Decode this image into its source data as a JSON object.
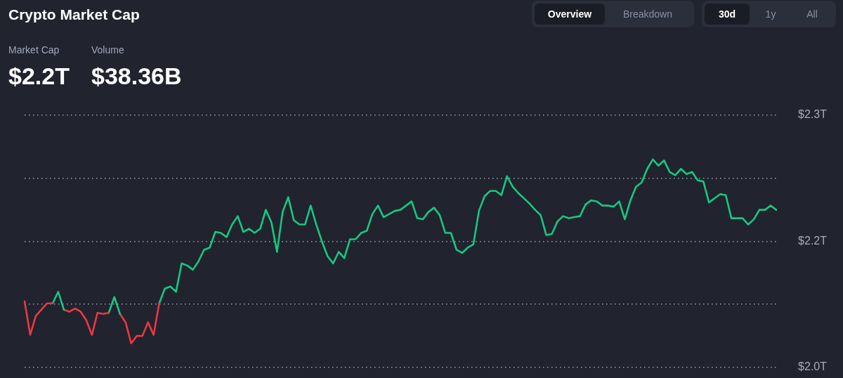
{
  "chart_data": {
    "type": "line",
    "title": "Crypto Market Cap",
    "annotations": [
      "Market Cap",
      "$2.2T",
      "Volume",
      "$38.36B",
      "Overview",
      "Breakdown",
      "30d",
      "1y",
      "All"
    ],
    "categories": [
      null,
      null,
      null,
      null,
      null,
      null,
      null,
      null,
      null,
      null,
      null,
      null,
      null,
      null,
      null,
      null,
      null,
      null,
      null,
      null,
      null,
      null,
      null,
      null,
      null,
      null,
      null,
      null,
      null,
      null,
      null,
      null,
      null,
      null,
      null,
      null,
      null,
      null,
      null,
      null,
      null,
      null,
      null,
      null,
      null,
      null,
      null,
      null,
      null,
      null,
      null,
      null,
      null,
      null,
      null,
      null,
      null,
      null,
      null,
      null,
      null,
      null,
      null,
      null,
      null,
      null,
      null,
      null,
      null,
      null,
      null,
      null,
      null,
      null,
      null,
      null,
      null,
      null,
      null,
      null,
      null,
      null,
      null,
      null,
      null,
      null,
      null,
      null,
      null,
      null,
      null,
      null,
      null,
      null,
      null,
      null,
      null,
      null,
      null,
      null,
      null,
      null,
      null,
      null,
      null,
      null,
      null,
      null,
      null,
      null,
      null,
      null,
      null,
      null,
      null,
      null,
      null,
      null,
      null,
      null,
      null,
      null,
      null,
      null,
      null,
      null,
      null,
      null,
      null,
      null,
      null,
      null,
      null,
      null,
      null
    ],
    "series": [
      {
        "color": "#ea3943",
        "values": [
          2.103,
          2.071,
          2.089,
          2.095,
          2.101,
          2.101,
          null,
          null,
          null,
          null,
          null,
          null,
          null,
          null,
          null,
          null,
          null,
          null,
          null,
          null,
          null,
          null,
          null,
          null,
          null,
          null,
          null,
          null,
          null,
          null,
          null,
          null,
          null,
          null,
          null,
          null,
          null,
          null,
          null,
          null,
          null,
          null,
          null,
          null,
          null,
          null,
          null,
          null,
          null,
          null,
          null,
          null,
          null,
          null,
          null,
          null,
          null,
          null,
          null,
          null,
          null,
          null,
          null,
          null,
          null,
          null,
          null,
          null,
          null,
          null,
          null,
          null,
          null,
          null,
          null,
          null,
          null,
          null,
          null,
          null,
          null,
          null,
          null,
          null,
          null,
          null,
          null,
          null,
          null,
          null,
          null,
          null,
          null,
          null,
          null,
          null,
          null,
          null,
          null,
          null,
          null,
          null,
          null,
          null,
          null,
          null,
          null,
          null,
          null,
          null,
          null,
          null,
          null,
          null,
          null,
          null,
          null,
          null,
          null,
          null,
          null,
          null,
          null,
          null,
          null,
          null,
          null,
          null,
          null,
          null,
          null,
          null,
          null,
          null,
          null
        ]
      },
      {
        "color": "#16c784",
        "values": [
          null,
          null,
          null,
          null,
          null,
          2.101,
          2.112,
          2.095,
          null,
          null,
          null,
          null,
          null,
          null,
          null,
          null,
          null,
          null,
          null,
          null,
          null,
          null,
          null,
          null,
          null,
          null,
          null,
          null,
          null,
          null,
          null,
          null,
          null,
          null,
          null,
          null,
          null,
          null,
          null,
          null,
          null,
          null,
          null,
          null,
          null,
          null,
          null,
          null,
          null,
          null,
          null,
          null,
          null,
          null,
          null,
          null,
          null,
          null,
          null,
          null,
          null,
          null,
          null,
          null,
          null,
          null,
          null,
          null,
          null,
          null,
          null,
          null,
          null,
          null,
          null,
          null,
          null,
          null,
          null,
          null,
          null,
          null,
          null,
          null,
          null,
          null,
          null,
          null,
          null,
          null,
          null,
          null,
          null,
          null,
          null,
          null,
          null,
          null,
          null,
          null,
          null,
          null,
          null,
          null,
          null,
          null,
          null,
          null,
          null,
          null,
          null,
          null,
          null,
          null,
          null,
          null,
          null,
          null,
          null,
          null,
          null,
          null,
          null,
          null,
          null,
          null,
          null,
          null,
          null,
          null,
          null,
          null,
          null,
          null,
          null
        ]
      },
      {
        "color": "#ea3943",
        "values": [
          null,
          null,
          null,
          null,
          null,
          null,
          null,
          2.095,
          2.093,
          2.096,
          2.093,
          2.085,
          2.071,
          2.092,
          2.091,
          2.092,
          null,
          null,
          null,
          null,
          null,
          null,
          null,
          null,
          null,
          null,
          null,
          null,
          null,
          null,
          null,
          null,
          null,
          null,
          null,
          null,
          null,
          null,
          null,
          null,
          null,
          null,
          null,
          null,
          null,
          null,
          null,
          null,
          null,
          null,
          null,
          null,
          null,
          null,
          null,
          null,
          null,
          null,
          null,
          null,
          null,
          null,
          null,
          null,
          null,
          null,
          null,
          null,
          null,
          null,
          null,
          null,
          null,
          null,
          null,
          null,
          null,
          null,
          null,
          null,
          null,
          null,
          null,
          null,
          null,
          null,
          null,
          null,
          null,
          null,
          null,
          null,
          null,
          null,
          null,
          null,
          null,
          null,
          null,
          null,
          null,
          null,
          null,
          null,
          null,
          null,
          null,
          null,
          null,
          null,
          null,
          null,
          null,
          null,
          null,
          null,
          null,
          null,
          null,
          null,
          null,
          null,
          null,
          null,
          null,
          null,
          null,
          null,
          null,
          null,
          null,
          null,
          null,
          null,
          null
        ]
      },
      {
        "color": "#16c784",
        "values": [
          null,
          null,
          null,
          null,
          null,
          null,
          null,
          null,
          null,
          null,
          null,
          null,
          null,
          null,
          null,
          2.092,
          2.107,
          2.091,
          null,
          null,
          null,
          null,
          null,
          null,
          null,
          null,
          null,
          null,
          null,
          null,
          null,
          null,
          null,
          null,
          null,
          null,
          null,
          null,
          null,
          null,
          null,
          null,
          null,
          null,
          null,
          null,
          null,
          null,
          null,
          null,
          null,
          null,
          null,
          null,
          null,
          null,
          null,
          null,
          null,
          null,
          null,
          null,
          null,
          null,
          null,
          null,
          null,
          null,
          null,
          null,
          null,
          null,
          null,
          null,
          null,
          null,
          null,
          null,
          null,
          null,
          null,
          null,
          null,
          null,
          null,
          null,
          null,
          null,
          null,
          null,
          null,
          null,
          null,
          null,
          null,
          null,
          null,
          null,
          null,
          null,
          null,
          null,
          null,
          null,
          null,
          null,
          null,
          null,
          null,
          null,
          null,
          null,
          null,
          null,
          null,
          null,
          null,
          null,
          null,
          null,
          null,
          null,
          null,
          null,
          null,
          null,
          null,
          null,
          null,
          null,
          null,
          null,
          null,
          null,
          null
        ]
      },
      {
        "color": "#ea3943",
        "values": [
          null,
          null,
          null,
          null,
          null,
          null,
          null,
          null,
          null,
          null,
          null,
          null,
          null,
          null,
          null,
          null,
          null,
          2.091,
          2.083,
          2.063,
          2.07,
          2.07,
          2.083,
          2.071,
          2.101,
          null,
          null,
          null,
          null,
          null,
          null,
          null,
          null,
          null,
          null,
          null,
          null,
          null,
          null,
          null,
          null,
          null,
          null,
          null,
          null,
          null,
          null,
          null,
          null,
          null,
          null,
          null,
          null,
          null,
          null,
          null,
          null,
          null,
          null,
          null,
          null,
          null,
          null,
          null,
          null,
          null,
          null,
          null,
          null,
          null,
          null,
          null,
          null,
          null,
          null,
          null,
          null,
          null,
          null,
          null,
          null,
          null,
          null,
          null,
          null,
          null,
          null,
          null,
          null,
          null,
          null,
          null,
          null,
          null,
          null,
          null,
          null,
          null,
          null,
          null,
          null,
          null,
          null,
          null,
          null,
          null,
          null,
          null,
          null,
          null,
          null,
          null,
          null,
          null,
          null,
          null,
          null,
          null,
          null,
          null,
          null,
          null,
          null,
          null,
          null,
          null,
          null,
          null,
          null,
          null,
          null,
          null,
          null,
          null,
          null
        ]
      },
      {
        "color": "#16c784",
        "values": [
          null,
          null,
          null,
          null,
          null,
          null,
          null,
          null,
          null,
          null,
          null,
          null,
          null,
          null,
          null,
          null,
          null,
          null,
          null,
          null,
          null,
          null,
          null,
          null,
          2.101,
          2.115,
          2.117,
          2.112,
          2.139,
          2.137,
          2.133,
          2.141,
          2.152,
          2.154,
          2.169,
          2.168,
          2.164,
          2.176,
          2.184,
          2.169,
          2.172,
          2.168,
          2.172,
          2.19,
          2.178,
          2.15,
          2.188,
          2.202,
          2.18,
          2.176,
          2.176,
          2.194,
          2.176,
          2.16,
          2.146,
          2.139,
          2.15,
          2.144,
          2.162,
          2.162,
          2.168,
          2.17,
          2.186,
          2.194,
          2.183,
          2.186,
          2.189,
          2.19,
          2.194,
          2.198,
          2.182,
          2.181,
          2.188,
          2.192,
          2.185,
          2.168,
          2.168,
          2.152,
          2.149,
          2.154,
          2.157,
          2.189,
          2.203,
          2.208,
          2.208,
          2.204,
          2.222,
          2.212,
          2.206,
          2.201,
          2.196,
          2.19,
          2.185,
          2.166,
          2.167,
          2.179,
          2.184,
          2.182,
          2.183,
          2.184,
          2.195,
          2.199,
          2.198,
          2.194,
          2.194,
          2.193,
          2.198,
          2.181,
          2.199,
          2.212,
          2.216,
          2.229,
          2.238,
          2.232,
          2.237,
          2.226,
          2.223,
          2.229,
          2.224,
          2.226,
          2.218,
          2.217,
          2.197,
          2.201,
          2.205,
          2.204,
          2.182,
          2.182,
          2.182,
          2.176,
          2.181,
          2.19,
          2.19,
          2.194,
          2.19
        ]
      }
    ],
    "ylim": [
      2.04,
      2.28
    ],
    "yticks": [
      {
        "value": 2.04,
        "label": "$2.0T"
      },
      {
        "value": 2.1,
        "label": null
      },
      {
        "value": 2.16,
        "label": "$2.2T"
      },
      {
        "value": 2.22,
        "label": null
      },
      {
        "value": 2.28,
        "label": "$2.3T"
      }
    ],
    "grid": "y",
    "marker": "none",
    "line_style": "solid"
  }
}
